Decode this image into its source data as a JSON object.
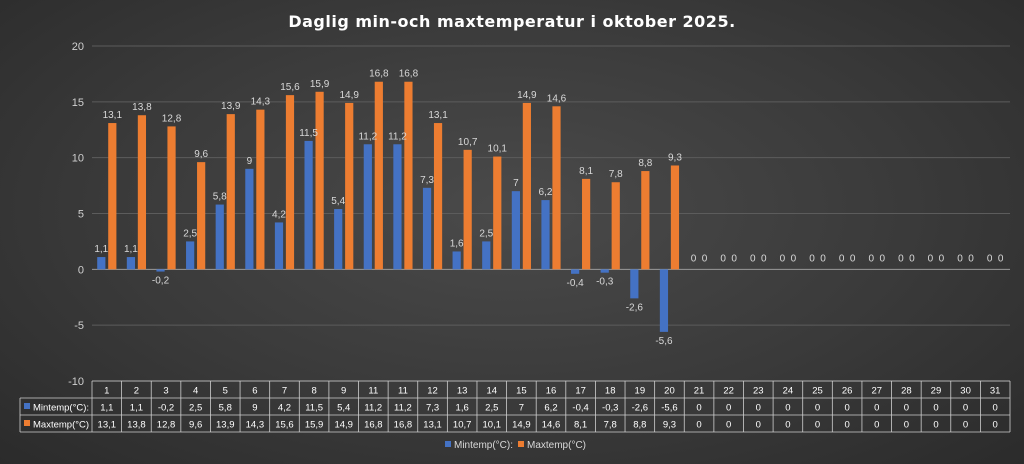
{
  "chart_data": {
    "type": "bar",
    "title": "Daglig min-och maxtemperatur i oktober 2025.",
    "categories": [
      "1",
      "2",
      "3",
      "4",
      "5",
      "6",
      "7",
      "8",
      "9",
      "11",
      "11",
      "12",
      "13",
      "14",
      "15",
      "16",
      "17",
      "18",
      "19",
      "20",
      "21",
      "22",
      "23",
      "24",
      "25",
      "26",
      "27",
      "28",
      "29",
      "30",
      "31"
    ],
    "series": [
      {
        "name": "Mintemp(°C):",
        "color": "#4472c4",
        "values": [
          1.1,
          1.1,
          -0.2,
          2.5,
          5.8,
          9,
          4.2,
          11.5,
          5.4,
          11.2,
          11.2,
          7.3,
          1.6,
          2.5,
          7,
          6.2,
          -0.4,
          -0.3,
          -2.6,
          -5.6,
          0,
          0,
          0,
          0,
          0,
          0,
          0,
          0,
          0,
          0,
          0
        ],
        "labels": [
          "1,1",
          "1,1",
          "-0,2",
          "2,5",
          "5,8",
          "9",
          "4,2",
          "11,5",
          "5,4",
          "11,2",
          "11,2",
          "7,3",
          "1,6",
          "2,5",
          "7",
          "6,2",
          "-0,4",
          "-0,3",
          "-2,6",
          "-5,6",
          "0",
          "0",
          "0",
          "0",
          "0",
          "0",
          "0",
          "0",
          "0",
          "0",
          "0"
        ]
      },
      {
        "name": "Maxtemp(°C)",
        "color": "#ed7d31",
        "values": [
          13.1,
          13.8,
          12.8,
          9.6,
          13.9,
          14.3,
          15.6,
          15.9,
          14.9,
          16.8,
          16.8,
          13.1,
          10.7,
          10.1,
          14.9,
          14.6,
          8.1,
          7.8,
          8.8,
          9.3,
          0,
          0,
          0,
          0,
          0,
          0,
          0,
          0,
          0,
          0,
          0
        ],
        "labels": [
          "13,1",
          "13,8",
          "12,8",
          "9,6",
          "13,9",
          "14,3",
          "15,6",
          "15,9",
          "14,9",
          "16,8",
          "16,8",
          "13,1",
          "10,7",
          "10,1",
          "14,9",
          "14,6",
          "8,1",
          "7,8",
          "8,8",
          "9,3",
          "0",
          "0",
          "0",
          "0",
          "0",
          "0",
          "0",
          "0",
          "0",
          "0",
          "0"
        ]
      }
    ],
    "table_series_names": [
      "Mintemp(°C):",
      "Maxtemp(°C)"
    ],
    "ylim": [
      -10,
      20
    ],
    "yticks": [
      -10,
      -5,
      0,
      5,
      10,
      15,
      20
    ],
    "grid": true,
    "legend": "bottom",
    "data_table": true
  }
}
